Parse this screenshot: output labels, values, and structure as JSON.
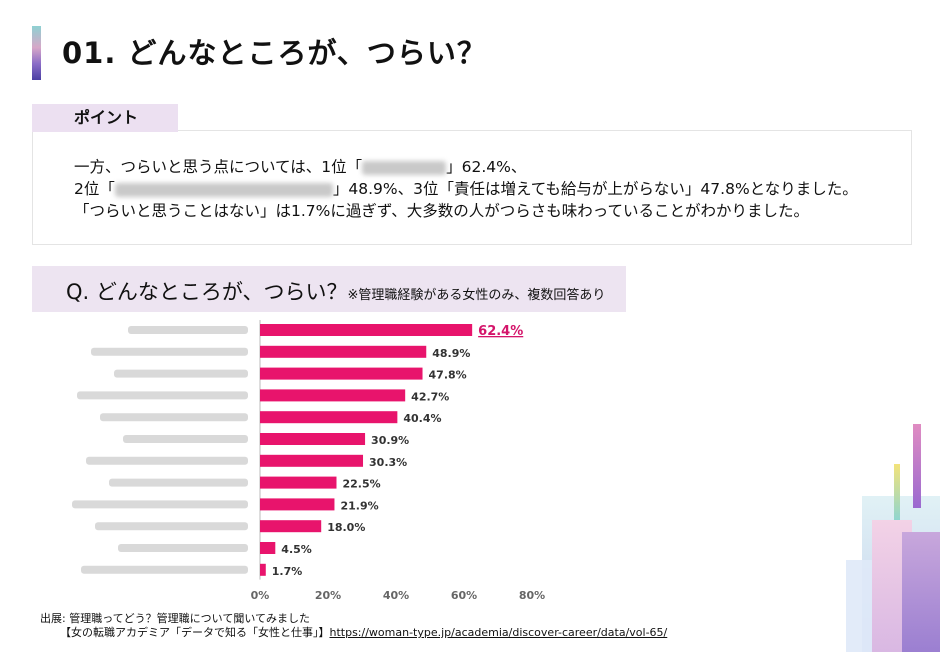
{
  "heading": {
    "title": "01. どんなところが、つらい？"
  },
  "point": {
    "label": "ポイント",
    "line1_a": "一方、つらいと思う点については、1位「",
    "line1_b": "」62.4%、",
    "line2_a": "2位「",
    "line2_b": "」48.9%、3位「責任は増えても給与が上がらない」47.8%となりました。",
    "line3": "「つらいと思うことはない」は1.7%に過ぎず、大多数の人がつらさも味わっていることがわかりました。"
  },
  "question": {
    "main": "Q.  どんなところが、つらい？",
    "note": "※管理職経験がある女性のみ、複数回答あり"
  },
  "chart_data": {
    "type": "bar",
    "orientation": "horizontal",
    "categories": [
      "",
      "",
      "",
      "",
      "",
      "",
      "",
      "",
      "",
      "",
      "",
      ""
    ],
    "values": [
      62.4,
      48.9,
      47.8,
      42.7,
      40.4,
      30.9,
      30.3,
      22.5,
      21.9,
      18.0,
      4.5,
      1.7
    ],
    "value_labels": [
      "62.4%",
      "48.9%",
      "47.8%",
      "42.7%",
      "40.4%",
      "30.9%",
      "30.3%",
      "22.5%",
      "21.9%",
      "18.0%",
      "4.5%",
      "1.7%"
    ],
    "highlight_index": 0,
    "xlim": [
      0,
      80
    ],
    "xticks": [
      "0%",
      "20%",
      "40%",
      "60%",
      "80%"
    ],
    "grid": false,
    "colors": {
      "bar": "#e8146c",
      "highlight_label": "#d4146a",
      "label": "#333333"
    }
  },
  "source": {
    "line1": "出展: 管理職ってどう？管理職について聞いてみました",
    "line2_prefix": "【女の転職アカデミア「データで知る「女性と仕事」】",
    "line2_url": "https://woman-type.jp/academia/discover-career/data/vol-65/"
  }
}
